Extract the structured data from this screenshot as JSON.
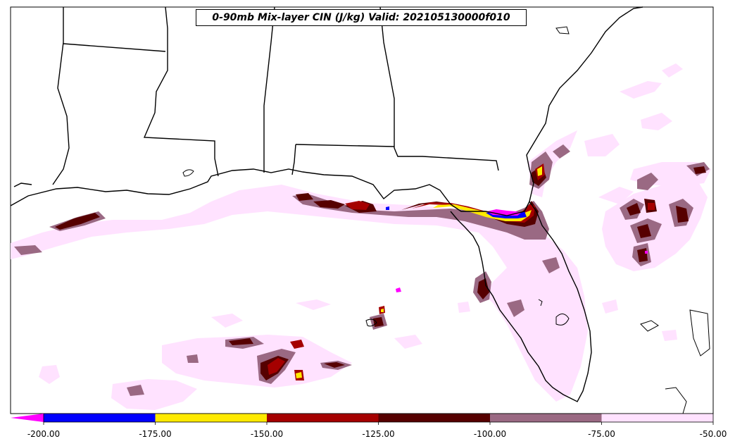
{
  "title": "0-90mb Mix-layer CIN (J/kg) Valid: 202105130000f010",
  "colorbar": {
    "extend": "min",
    "extend_color": "#ff00ff",
    "bins": [
      {
        "min": -200,
        "max": -175,
        "color": "#0000ff"
      },
      {
        "min": -175,
        "max": -150,
        "color": "#ffea00"
      },
      {
        "min": -150,
        "max": -125,
        "color": "#a50000"
      },
      {
        "min": -125,
        "max": -100,
        "color": "#560000"
      },
      {
        "min": -100,
        "max": -75,
        "color": "#9a6983"
      },
      {
        "min": -75,
        "max": -50,
        "color": "#ffe2ff"
      }
    ],
    "tick_labels": [
      "-200.00",
      "-175.00",
      "-150.00",
      "-125.00",
      "-100.00",
      "-75.00",
      "-50.00"
    ]
  },
  "map": {
    "region": "southeastern-united-states-gulf-of-mexico",
    "fill_colors": {
      "very_light": "#ffe2ff",
      "mauve": "#9a6983",
      "dark_maroon": "#560000",
      "red": "#a50000",
      "yellow": "#ffea00",
      "blue": "#0000ff",
      "magenta": "#ff00ff"
    }
  }
}
